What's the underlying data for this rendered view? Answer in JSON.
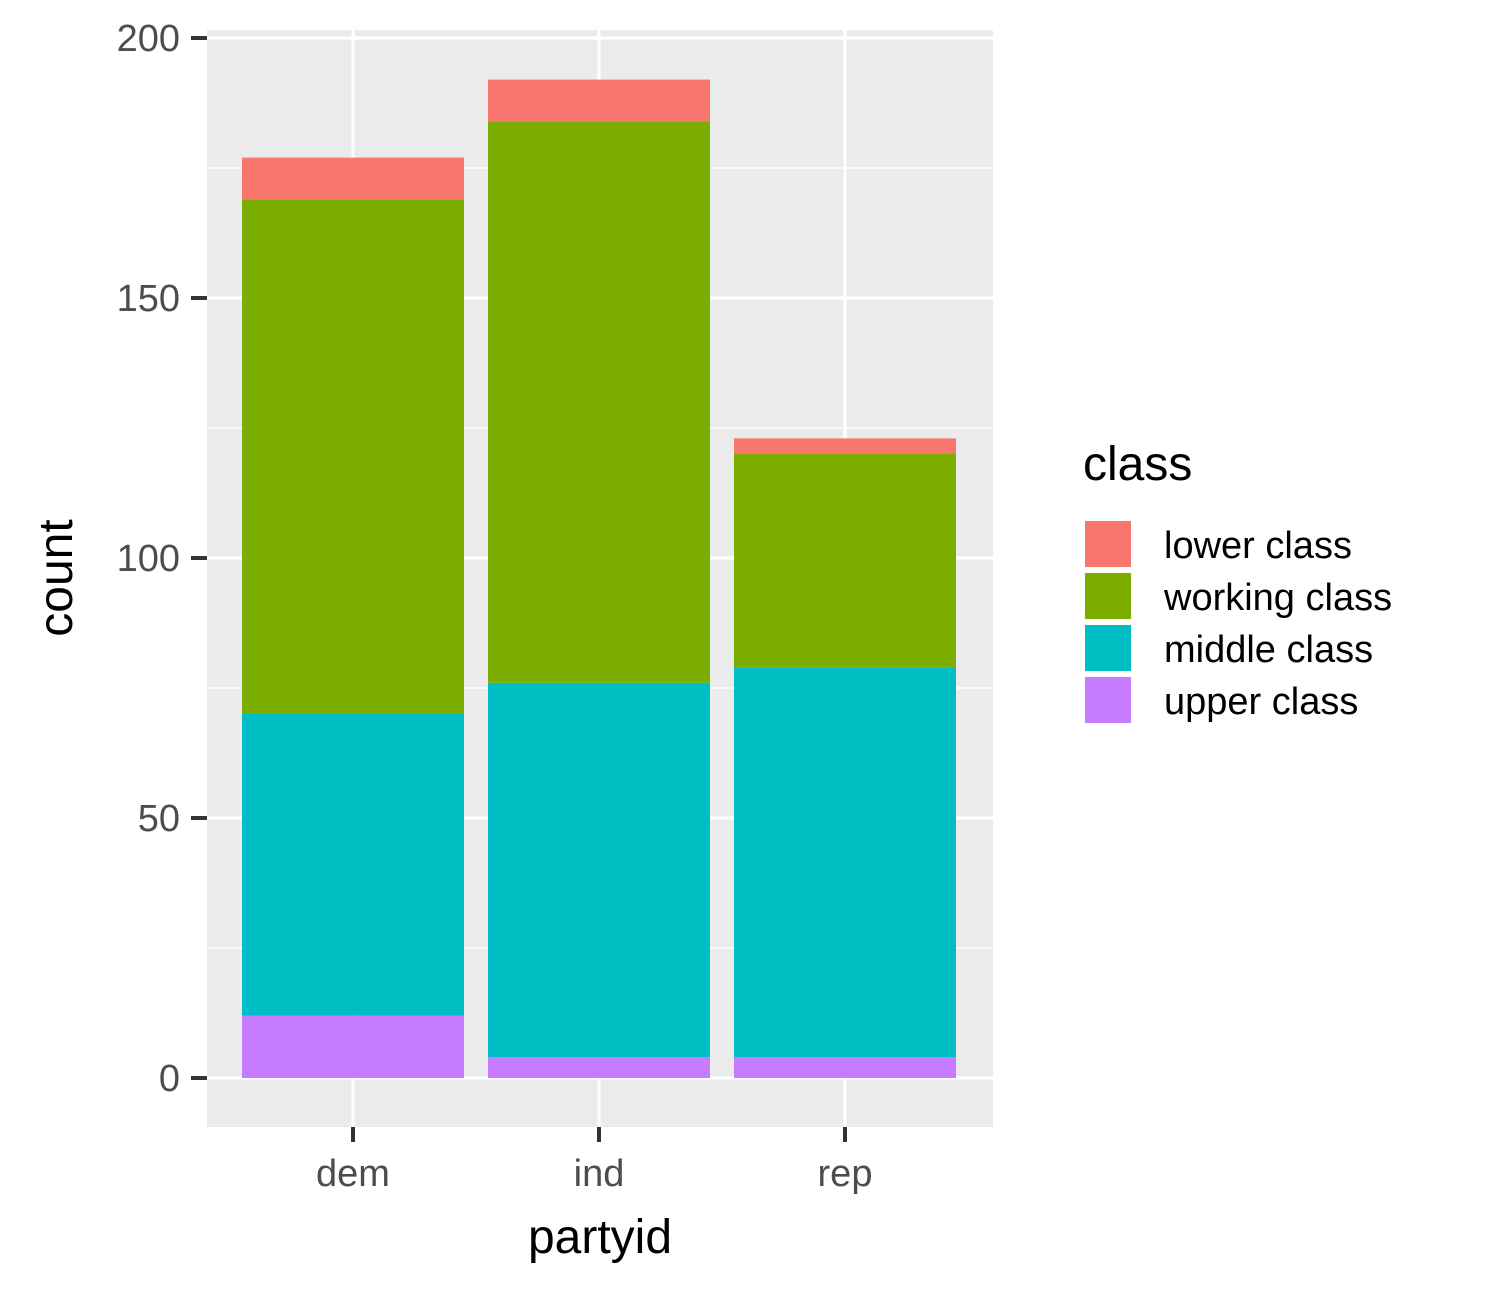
{
  "chart_data": {
    "type": "bar",
    "stacked": true,
    "categories": [
      "dem",
      "ind",
      "rep"
    ],
    "xlabel": "partyid",
    "ylabel": "count",
    "ylim": [
      -9,
      210
    ],
    "y_ticks": [
      0,
      50,
      100,
      150,
      200
    ],
    "grid": true,
    "legend_position": "right",
    "legend_title": "class",
    "series": [
      {
        "name": "upper class",
        "color": "#C77CFF",
        "values": [
          12,
          4,
          4
        ]
      },
      {
        "name": "middle class",
        "color": "#00BFC4",
        "values": [
          58,
          72,
          75
        ]
      },
      {
        "name": "working class",
        "color": "#7CAE00",
        "values": [
          99,
          108,
          41
        ]
      },
      {
        "name": "lower class",
        "color": "#F8766D",
        "values": [
          8,
          8,
          3
        ]
      }
    ],
    "legend_order": [
      "lower class",
      "working class",
      "middle class",
      "upper class"
    ]
  }
}
